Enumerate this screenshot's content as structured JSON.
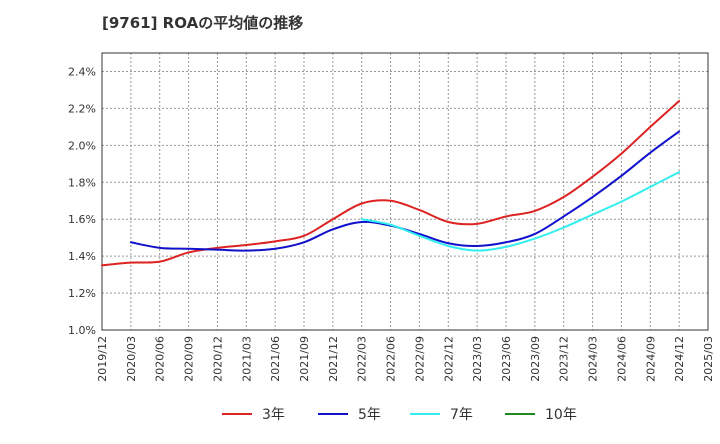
{
  "chart_data": {
    "type": "line",
    "title": "[9761]  ROAの平均値の推移",
    "xlabel": "",
    "ylabel": "",
    "ylim": [
      1.0,
      2.5
    ],
    "y_ticks": [
      "1.0%",
      "1.2%",
      "1.4%",
      "1.6%",
      "1.8%",
      "2.0%",
      "2.2%",
      "2.4%"
    ],
    "y_tick_values": [
      1.0,
      1.2,
      1.4,
      1.6,
      1.8,
      2.0,
      2.2,
      2.4
    ],
    "x_tick_labels": [
      "2019/12",
      "2020/03",
      "2020/06",
      "2020/09",
      "2020/12",
      "2021/03",
      "2021/06",
      "2021/09",
      "2021/12",
      "2022/03",
      "2022/06",
      "2022/09",
      "2022/12",
      "2023/03",
      "2023/06",
      "2023/09",
      "2023/12",
      "2024/03",
      "2024/06",
      "2024/09",
      "2024/12",
      "2025/03"
    ],
    "grid": true,
    "legend_position": "bottom",
    "series": [
      {
        "name": "3年",
        "color": "#dd2222",
        "x": [
          "2019/12",
          "2020/03",
          "2020/06",
          "2020/09",
          "2020/12",
          "2021/03",
          "2021/06",
          "2021/09",
          "2021/12",
          "2022/03",
          "2022/06",
          "2022/09",
          "2022/12",
          "2023/03",
          "2023/06",
          "2023/09",
          "2023/12",
          "2024/03",
          "2024/06",
          "2024/09",
          "2024/12"
        ],
        "values": [
          1.35,
          1.365,
          1.37,
          1.42,
          1.445,
          1.46,
          1.48,
          1.51,
          1.6,
          1.685,
          1.7,
          1.65,
          1.585,
          1.575,
          1.615,
          1.645,
          1.72,
          1.83,
          1.955,
          2.1,
          2.24
        ]
      },
      {
        "name": "5年",
        "color": "#1111cc",
        "x": [
          "2020/03",
          "2020/06",
          "2020/09",
          "2020/12",
          "2021/03",
          "2021/06",
          "2021/09",
          "2021/12",
          "2022/03",
          "2022/06",
          "2022/09",
          "2022/12",
          "2023/03",
          "2023/06",
          "2023/09",
          "2023/12",
          "2024/03",
          "2024/06",
          "2024/09",
          "2024/12"
        ],
        "values": [
          1.475,
          1.445,
          1.44,
          1.435,
          1.43,
          1.44,
          1.475,
          1.545,
          1.585,
          1.565,
          1.52,
          1.47,
          1.455,
          1.475,
          1.52,
          1.615,
          1.72,
          1.835,
          1.96,
          2.075
        ]
      },
      {
        "name": "7年",
        "color": "#33eeee",
        "x": [
          "2022/03",
          "2022/06",
          "2022/09",
          "2022/12",
          "2023/03",
          "2023/06",
          "2023/09",
          "2023/12",
          "2024/03",
          "2024/06",
          "2024/09",
          "2024/12"
        ],
        "values": [
          1.6,
          1.57,
          1.51,
          1.455,
          1.43,
          1.45,
          1.495,
          1.555,
          1.625,
          1.695,
          1.775,
          1.855
        ]
      },
      {
        "name": "10年",
        "color": "#228822",
        "x": [],
        "values": []
      }
    ]
  }
}
